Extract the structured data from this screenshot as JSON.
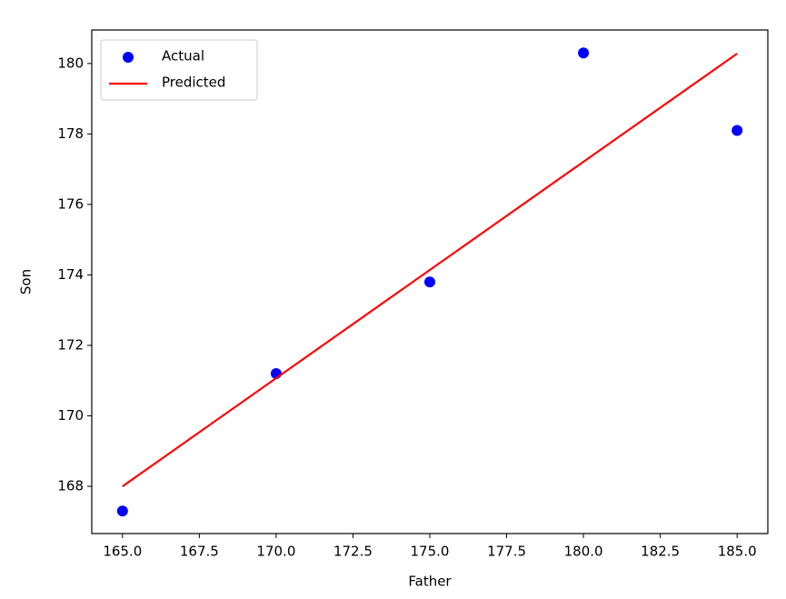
{
  "chart_data": {
    "type": "scatter",
    "x_label": "Father",
    "y_label": "Son",
    "x": [
      165,
      170,
      175,
      180,
      185
    ],
    "series": [
      {
        "name": "Actual",
        "type": "scatter",
        "color": "#0000ff",
        "values": [
          167.3,
          171.2,
          173.8,
          180.3,
          178.1
        ]
      },
      {
        "name": "Predicted",
        "type": "line",
        "color": "#ff0000",
        "values": [
          168.0,
          171.07,
          174.14,
          177.21,
          180.28
        ]
      }
    ],
    "xlim": [
      164,
      186
    ],
    "ylim": [
      166.66,
      180.95
    ],
    "xticks": [
      {
        "value": 165,
        "label": "165.0"
      },
      {
        "value": 167.5,
        "label": "167.5"
      },
      {
        "value": 170,
        "label": "170.0"
      },
      {
        "value": 172.5,
        "label": "172.5"
      },
      {
        "value": 175,
        "label": "175.0"
      },
      {
        "value": 177.5,
        "label": "177.5"
      },
      {
        "value": 180,
        "label": "180.0"
      },
      {
        "value": 182.5,
        "label": "182.5"
      },
      {
        "value": 185,
        "label": "185.0"
      }
    ],
    "yticks": [
      168,
      170,
      172,
      174,
      176,
      178,
      180
    ],
    "grid": false,
    "legend": "upper-left"
  }
}
